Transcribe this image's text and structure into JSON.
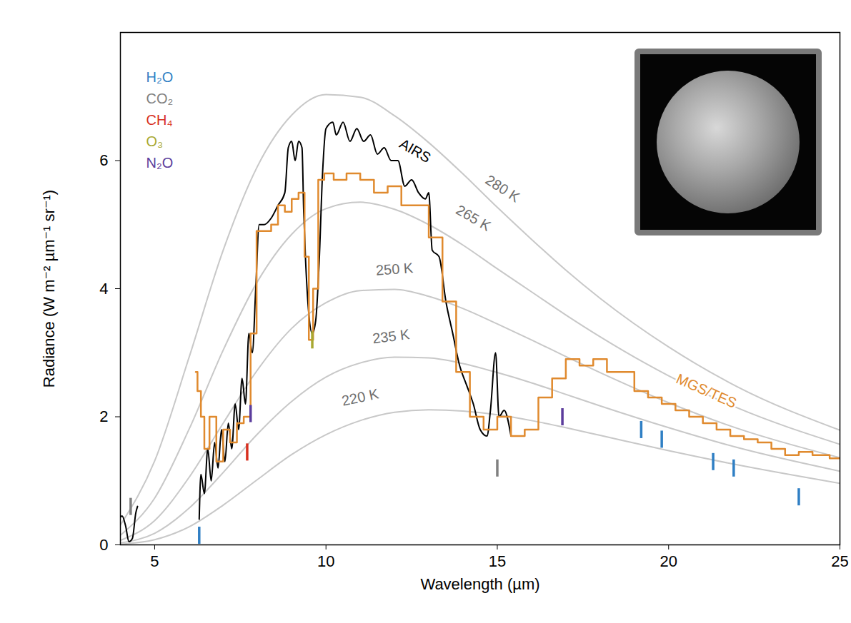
{
  "chart_data": {
    "type": "line",
    "x_label": "Wavelength (µm)",
    "y_label": "Radiance (W m⁻² µm⁻¹ sr⁻¹)",
    "xlim": [
      4,
      25
    ],
    "ylim": [
      0,
      8
    ],
    "xticks": [
      5,
      10,
      15,
      20,
      25
    ],
    "yticks": [
      0,
      2,
      4,
      6
    ],
    "grid": false,
    "legend": "top-left",
    "series": [
      {
        "name": "280 K",
        "color": "#c8c8c8",
        "line_style": "solid",
        "x": [
          4,
          5,
          6,
          7,
          8,
          9,
          10,
          11,
          12,
          13,
          14,
          15,
          16,
          17,
          18,
          20,
          22,
          25
        ],
        "values": [
          0.31,
          1.31,
          2.92,
          4.6,
          5.91,
          6.71,
          7.03,
          6.99,
          6.7,
          6.28,
          5.79,
          5.27,
          4.77,
          4.29,
          3.85,
          3.09,
          2.47,
          1.79
        ]
      },
      {
        "name": "265 K",
        "color": "#c8c8c8",
        "line_style": "solid",
        "x": [
          4,
          5,
          6,
          7,
          8,
          9,
          10,
          11,
          12,
          13,
          14,
          15,
          16,
          17,
          18,
          20,
          22,
          25
        ],
        "values": [
          0.15,
          0.73,
          1.8,
          3.04,
          4.11,
          4.85,
          5.25,
          5.35,
          5.24,
          5.0,
          4.68,
          4.31,
          3.95,
          3.59,
          3.25,
          2.64,
          2.14,
          1.57
        ]
      },
      {
        "name": "250 K",
        "color": "#c8c8c8",
        "line_style": "solid",
        "x": [
          4,
          5,
          6,
          7,
          8,
          9,
          10,
          11,
          12,
          13,
          14,
          15,
          16,
          17,
          18,
          20,
          22,
          25
        ],
        "values": [
          0.07,
          0.38,
          1.05,
          1.9,
          2.73,
          3.38,
          3.78,
          3.97,
          3.99,
          3.88,
          3.69,
          3.45,
          3.2,
          2.94,
          2.69,
          2.22,
          1.82,
          1.36
        ]
      },
      {
        "name": "235 K",
        "color": "#c8c8c8",
        "line_style": "solid",
        "x": [
          4,
          5,
          6,
          7,
          8,
          9,
          10,
          11,
          12,
          13,
          14,
          15,
          16,
          17,
          18,
          20,
          22,
          25
        ],
        "values": [
          0.03,
          0.18,
          0.57,
          1.13,
          1.73,
          2.24,
          2.62,
          2.84,
          2.93,
          2.92,
          2.83,
          2.69,
          2.53,
          2.35,
          2.17,
          1.83,
          1.52,
          1.15
        ]
      },
      {
        "name": "220 K",
        "color": "#c8c8c8",
        "line_style": "solid",
        "x": [
          4,
          5,
          6,
          7,
          8,
          9,
          10,
          11,
          12,
          13,
          14,
          15,
          16,
          17,
          18,
          20,
          22,
          25
        ],
        "values": [
          0.01,
          0.08,
          0.28,
          0.62,
          1.02,
          1.41,
          1.72,
          1.94,
          2.07,
          2.11,
          2.09,
          2.03,
          1.94,
          1.83,
          1.71,
          1.47,
          1.25,
          0.96
        ]
      },
      {
        "name": "AIRS",
        "color": "#000000",
        "line_style": "solid",
        "x": [
          3.95,
          4.05,
          4.15,
          4.25,
          4.35,
          4.45,
          4.5,
          5.4,
          6.3,
          6.35,
          6.45,
          6.55,
          6.65,
          6.75,
          6.85,
          6.95,
          7.05,
          7.15,
          7.25,
          7.35,
          7.45,
          7.55,
          7.65,
          7.75,
          7.85,
          7.95,
          8.05,
          8.2,
          8.4,
          8.6,
          8.8,
          8.9,
          9.0,
          9.1,
          9.2,
          9.3,
          9.35,
          9.4,
          9.5,
          9.6,
          9.7,
          9.8,
          9.9,
          10.0,
          10.2,
          10.3,
          10.5,
          10.7,
          10.9,
          11.1,
          11.3,
          11.5,
          11.7,
          11.9,
          12.1,
          12.3,
          12.5,
          12.7,
          12.9,
          13.0,
          13.1,
          13.3,
          13.5,
          13.7,
          13.9,
          14.1,
          14.3,
          14.5,
          14.7,
          14.8,
          14.95,
          15.05,
          15.2,
          15.4
        ],
        "values": [
          0.4,
          0.45,
          0.3,
          0.05,
          0.1,
          0.5,
          0.6,
          null,
          0.4,
          1.1,
          0.8,
          1.5,
          1.0,
          1.6,
          1.2,
          1.8,
          1.3,
          1.9,
          1.5,
          2.2,
          1.8,
          2.6,
          2.2,
          3.3,
          3.0,
          4.0,
          5.0,
          5.0,
          5.1,
          5.3,
          5.5,
          6.2,
          6.3,
          6.0,
          6.3,
          6.2,
          5.2,
          4.5,
          3.6,
          3.3,
          3.5,
          4.4,
          5.8,
          6.5,
          6.6,
          6.4,
          6.6,
          6.3,
          6.5,
          6.3,
          6.4,
          6.1,
          6.2,
          6.0,
          6.0,
          5.6,
          5.7,
          5.5,
          5.4,
          5.5,
          4.6,
          4.5,
          3.8,
          3.3,
          2.8,
          2.5,
          2.2,
          1.8,
          1.7,
          2.1,
          3.0,
          2.0,
          2.1,
          1.7
        ]
      },
      {
        "name": "MGS/TES",
        "color": "#e08a2e",
        "line_style": "step",
        "x": [
          6.2,
          6.3,
          6.4,
          6.5,
          6.7,
          6.9,
          7.1,
          7.3,
          7.5,
          7.7,
          7.9,
          8.05,
          8.3,
          8.5,
          8.7,
          8.9,
          9.1,
          9.3,
          9.45,
          9.55,
          9.7,
          9.85,
          10.05,
          10.4,
          10.8,
          11.2,
          11.6,
          12.0,
          12.4,
          12.8,
          13.2,
          13.6,
          14.0,
          14.4,
          14.8,
          15.2,
          15.6,
          16.0,
          16.4,
          16.8,
          17.2,
          17.6,
          18.0,
          18.4,
          18.8,
          19.2,
          19.6,
          20.0,
          20.4,
          20.8,
          21.2,
          21.6,
          22.0,
          22.4,
          22.8,
          23.2,
          23.6,
          24.0,
          24.4,
          25.0
        ],
        "values": [
          2.7,
          2.4,
          2.0,
          1.5,
          2.0,
          1.3,
          1.8,
          1.6,
          1.9,
          2.0,
          3.3,
          4.9,
          4.9,
          5.0,
          5.3,
          5.2,
          5.4,
          5.5,
          4.5,
          3.2,
          4.0,
          5.7,
          5.8,
          5.7,
          5.8,
          5.7,
          5.5,
          5.6,
          5.3,
          5.3,
          4.8,
          3.8,
          2.7,
          2.0,
          1.8,
          2.0,
          1.7,
          1.8,
          2.3,
          2.6,
          2.9,
          2.8,
          2.9,
          2.7,
          2.7,
          2.4,
          2.3,
          2.2,
          2.1,
          2.0,
          1.9,
          1.8,
          1.7,
          1.65,
          1.6,
          1.5,
          1.4,
          1.45,
          1.4,
          1.35
        ]
      }
    ],
    "absorption_bands": [
      {
        "name": "H₂O",
        "color": "#2f7fc4",
        "x": [
          6.3,
          19.2,
          19.8,
          21.3,
          21.9,
          23.8
        ],
        "values": [
          0.15,
          1.8,
          1.65,
          1.3,
          1.2,
          0.75
        ]
      },
      {
        "name": "CO₂",
        "color": "#808080",
        "x": [
          4.3,
          15.0
        ],
        "values": [
          0.6,
          1.2
        ]
      },
      {
        "name": "CH₄",
        "color": "#d7301f",
        "x": [
          7.7
        ],
        "values": [
          1.45
        ]
      },
      {
        "name": "O₃",
        "color": "#a8a832",
        "x": [
          9.6
        ],
        "values": [
          3.2
        ]
      },
      {
        "name": "N₂O",
        "color": "#5b3c9c",
        "x": [
          7.8,
          16.9
        ],
        "values": [
          2.05,
          2.0
        ]
      }
    ],
    "annotations": [
      {
        "text": "280 K",
        "x": 15.15,
        "y": 5.56,
        "color": "#6e6e6e"
      },
      {
        "text": "265 K",
        "x": 14.3,
        "y": 5.1,
        "color": "#6e6e6e"
      },
      {
        "text": "250 K",
        "x": 12.0,
        "y": 4.3,
        "color": "#6e6e6e"
      },
      {
        "text": "235 K",
        "x": 11.9,
        "y": 3.25,
        "color": "#6e6e6e"
      },
      {
        "text": "220 K",
        "x": 11.0,
        "y": 2.3,
        "color": "#6e6e6e"
      },
      {
        "text": "AIRS",
        "x": 12.6,
        "y": 6.15,
        "color": "#000000"
      },
      {
        "text": "MGS/TES",
        "x": 21.1,
        "y": 2.4,
        "color": "#e08a2e"
      }
    ]
  }
}
